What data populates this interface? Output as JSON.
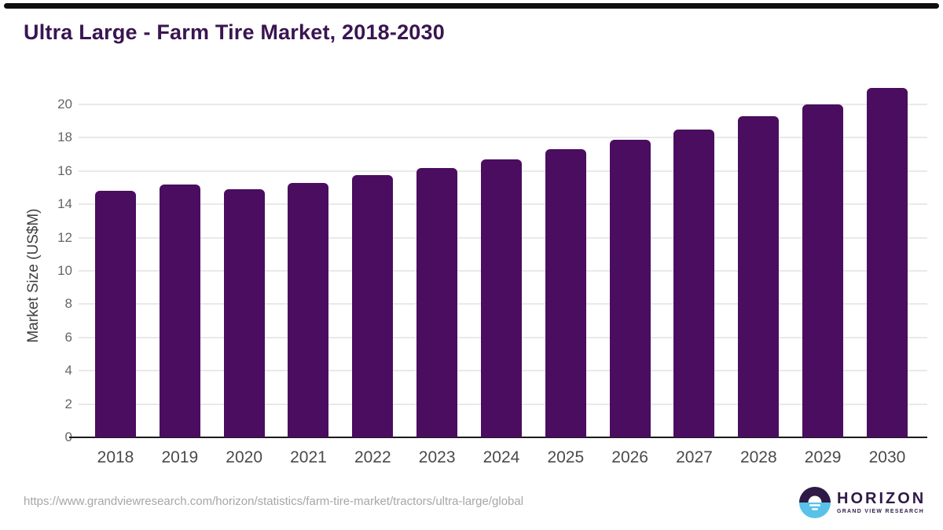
{
  "header": {
    "title": "Ultra Large - Farm Tire Market, 2018-2030"
  },
  "chart_data": {
    "type": "bar",
    "title": "Ultra Large - Farm Tire Market, 2018-2030",
    "categories": [
      "2018",
      "2019",
      "2020",
      "2021",
      "2022",
      "2023",
      "2024",
      "2025",
      "2026",
      "2027",
      "2028",
      "2029",
      "2030"
    ],
    "values": [
      14.8,
      15.2,
      14.9,
      15.3,
      15.75,
      16.2,
      16.7,
      17.3,
      17.9,
      18.5,
      19.3,
      20.0,
      21.0
    ],
    "xlabel": "",
    "ylabel": "Market Size (US$M)",
    "ylim": [
      0,
      21.32
    ],
    "yticks": [
      0,
      2,
      4,
      6,
      8,
      10,
      12,
      14,
      16,
      18,
      20
    ],
    "grid": true,
    "legend_position": "none",
    "bar_color": "#4a0d5f",
    "grid_color": "#e9e9e9",
    "axis_color": "#1c1c1c"
  },
  "footer": {
    "source_url": "https://www.grandviewresearch.com/horizon/statistics/farm-tire-market/tractors/ultra-large/global",
    "logo": {
      "name": "HORIZON",
      "subtitle": "GRAND VIEW RESEARCH",
      "icon_top_color": "#2e1a47",
      "icon_bottom_color": "#58c2e9"
    }
  }
}
